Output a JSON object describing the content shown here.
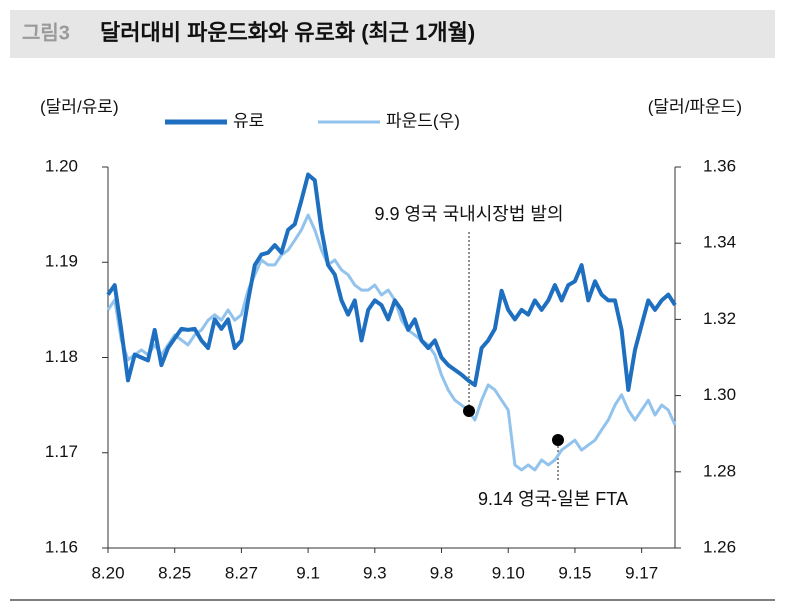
{
  "chart_data": {
    "type": "line",
    "figure_label": "그림3",
    "title": "달러대비 파운드화와 유로화 (최근 1개월)",
    "y_label": "(달러/유로)",
    "y2_label": "(달러/파운드)",
    "categories": [
      "8.20",
      null,
      null,
      null,
      null,
      null,
      null,
      null,
      null,
      null,
      "8.25",
      null,
      null,
      null,
      null,
      null,
      null,
      null,
      null,
      null,
      "8.27",
      null,
      null,
      null,
      null,
      null,
      null,
      null,
      null,
      null,
      "9.1",
      null,
      null,
      null,
      null,
      null,
      null,
      null,
      null,
      null,
      "9.3",
      null,
      null,
      null,
      null,
      null,
      null,
      null,
      null,
      null,
      "9.8",
      null,
      null,
      null,
      null,
      null,
      null,
      null,
      null,
      null,
      "9.10",
      null,
      null,
      null,
      null,
      null,
      null,
      null,
      null,
      null,
      "9.15",
      null,
      null,
      null,
      null,
      null,
      null,
      null,
      null,
      null,
      "9.17",
      null,
      null,
      null,
      null,
      null
    ],
    "series": [
      {
        "name": "유로",
        "color": "#1e6fc0",
        "values": [
          1.1866,
          1.1876,
          1.1829,
          1.1776,
          1.1803,
          1.18,
          1.1797,
          1.1829,
          1.1792,
          1.181,
          1.182,
          1.183,
          1.1829,
          1.183,
          1.1818,
          1.181,
          1.184,
          1.183,
          1.184,
          1.181,
          1.1818,
          1.186,
          1.1897,
          1.1908,
          1.191,
          1.1918,
          1.191,
          1.1934,
          1.194,
          1.1965,
          1.1992,
          1.1986,
          1.1934,
          1.1897,
          1.1887,
          1.186,
          1.1845,
          1.186,
          1.1818,
          1.185,
          1.186,
          1.1855,
          1.184,
          1.186,
          1.185,
          1.1829,
          1.184,
          1.1818,
          1.181,
          1.1818,
          1.18,
          1.1792,
          1.1787,
          1.1782,
          1.1776,
          1.1771,
          1.181,
          1.1818,
          1.183,
          1.187,
          1.185,
          1.184,
          1.185,
          1.1845,
          1.186,
          1.185,
          1.186,
          1.1876,
          1.186,
          1.1876,
          1.188,
          1.1897,
          1.186,
          1.188,
          1.1866,
          1.186,
          1.186,
          1.1829,
          1.1766,
          1.1808,
          1.1834,
          1.186,
          1.185,
          1.186,
          1.1866,
          1.1855
        ]
      },
      {
        "name": "파운드(우)",
        "color": "#92c3ec",
        "axis": "y2",
        "values": [
          1.3225,
          1.3251,
          1.3146,
          1.3094,
          1.3107,
          1.312,
          1.3107,
          1.3133,
          1.3107,
          1.3133,
          1.3159,
          1.3146,
          1.3133,
          1.3159,
          1.3172,
          1.3198,
          1.3212,
          1.3198,
          1.3225,
          1.3198,
          1.3212,
          1.3277,
          1.3317,
          1.3356,
          1.3343,
          1.3343,
          1.3369,
          1.3382,
          1.3408,
          1.3435,
          1.3474,
          1.3435,
          1.3382,
          1.3343,
          1.3356,
          1.333,
          1.3317,
          1.329,
          1.3277,
          1.3277,
          1.329,
          1.3264,
          1.3277,
          1.3251,
          1.3198,
          1.3172,
          1.3159,
          1.3146,
          1.3133,
          1.3107,
          1.3054,
          1.3015,
          1.2988,
          1.2975,
          1.2962,
          1.2936,
          1.2988,
          1.3028,
          1.3015,
          1.2988,
          1.2962,
          1.2818,
          1.2805,
          1.2818,
          1.2805,
          1.2831,
          1.2818,
          1.2831,
          1.2857,
          1.287,
          1.2883,
          1.2857,
          1.287,
          1.2883,
          1.291,
          1.2936,
          1.2975,
          1.3002,
          1.2962,
          1.2936,
          1.2962,
          1.2988,
          1.2949,
          1.2975,
          1.2962,
          1.2923
        ]
      }
    ],
    "ylim": [
      1.16,
      1.2
    ],
    "yticks": [
      1.16,
      1.17,
      1.18,
      1.19,
      {
        "value": 1.2,
        "label": "1.20"
      }
    ],
    "y2lim": [
      1.26,
      1.36
    ],
    "y2ticks": [
      1.26,
      1.28,
      {
        "value": 1.3,
        "label": "1.30"
      },
      1.32,
      1.34,
      1.36
    ],
    "annotations": [
      "9.9 영국 국내시장법 발의",
      "9.14 영국-일본 FTA"
    ]
  }
}
